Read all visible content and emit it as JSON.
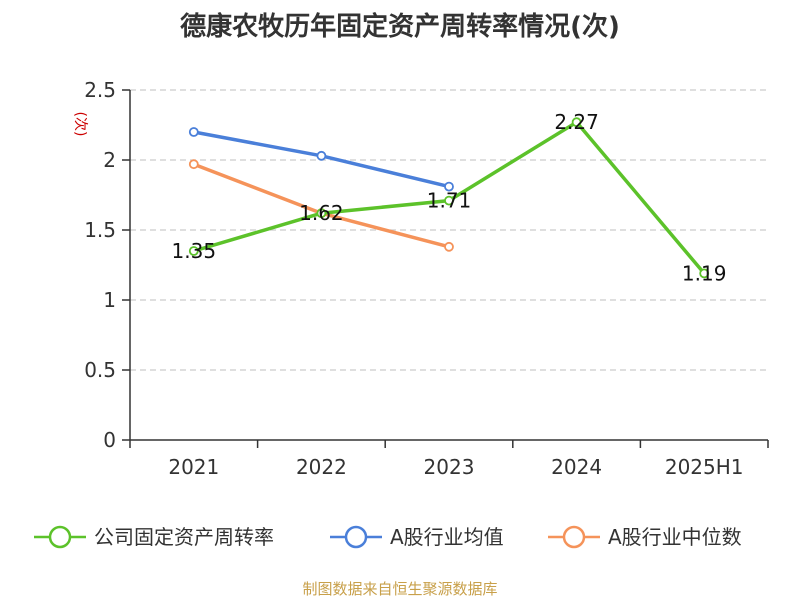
{
  "title": "德康农牧历年固定资产周转率情况(次)",
  "source": "制图数据来自恒生聚源数据库",
  "colors": {
    "company": "#5cc22a",
    "industry_avg": "#4a7fd9",
    "industry_median": "#f5935a",
    "grid": "#cccccc",
    "axis": "#333333"
  },
  "chart_data": {
    "type": "line",
    "title": "德康农牧历年固定资产周转率情况(次)",
    "xlabel": "",
    "ylabel": "(次)",
    "ylim": [
      0,
      2.5
    ],
    "yticks": [
      0,
      0.5,
      1,
      1.5,
      2,
      2.5
    ],
    "ytick_labels": [
      "0",
      "0.5",
      "1",
      "1.5",
      "2",
      "2.5"
    ],
    "categories": [
      "2021",
      "2022",
      "2023",
      "2024",
      "2025H1"
    ],
    "grid": true,
    "legend_position": "bottom",
    "series": [
      {
        "name": "公司固定资产周转率",
        "color": "#5cc22a",
        "values": [
          1.35,
          1.62,
          1.71,
          2.27,
          1.19
        ],
        "labels": [
          "1.35",
          "1.62",
          "1.71",
          "2.27",
          "1.19"
        ]
      },
      {
        "name": "A股行业均值",
        "color": "#4a7fd9",
        "values": [
          2.2,
          2.03,
          1.81,
          null,
          null
        ]
      },
      {
        "name": "A股行业中位数",
        "color": "#f5935a",
        "values": [
          1.97,
          1.62,
          1.38,
          null,
          null
        ]
      }
    ]
  }
}
